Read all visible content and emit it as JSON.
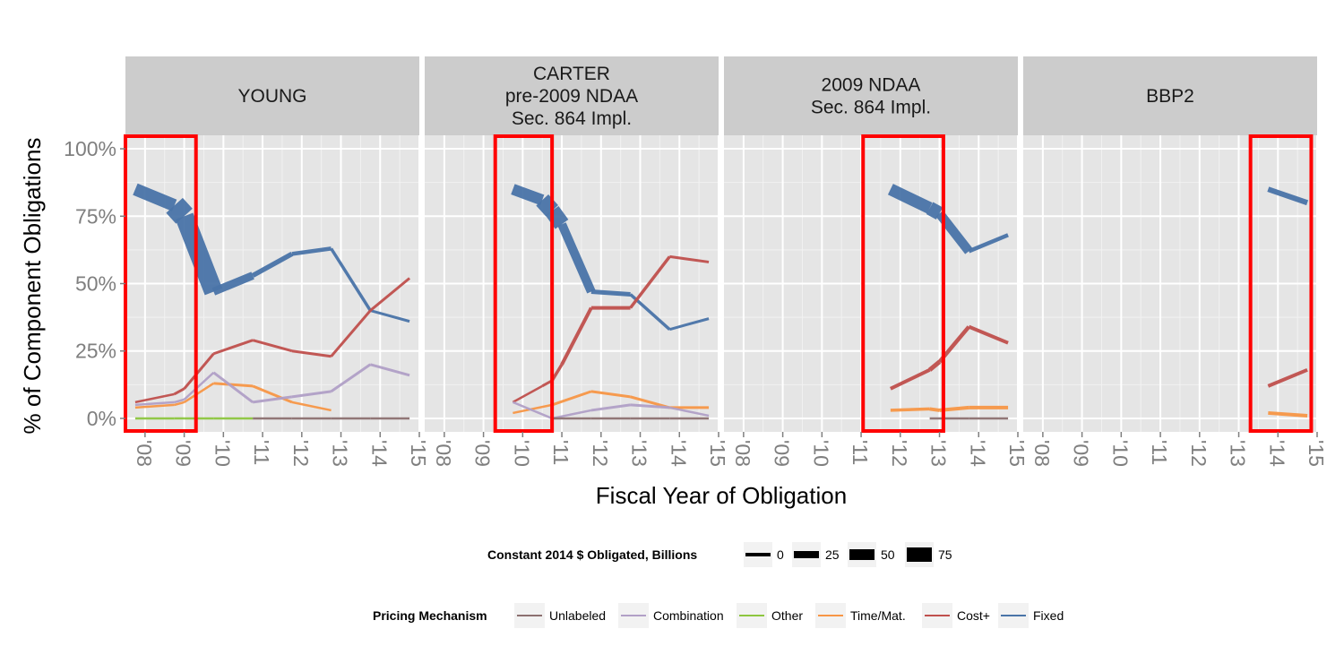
{
  "chart_data": {
    "type": "line",
    "xlabel": "Fiscal Year of Obligation",
    "ylabel": "% of Component Obligations",
    "x_ticks": [
      "'08",
      "'09",
      "'10",
      "'11",
      "'12",
      "'13",
      "'14",
      "'15"
    ],
    "y_ticks": [
      "0%",
      "25%",
      "50%",
      "75%",
      "100%"
    ],
    "xlim": [
      2007.5,
      2015
    ],
    "ylim": [
      -0.05,
      1.05
    ],
    "grid": true,
    "panels": [
      {
        "title_lines": [
          "YOUNG"
        ],
        "highlight": [
          2007.5,
          2009.3
        ],
        "series": [
          {
            "name": "Fixed",
            "color": "#4a74a8",
            "points": [
              [
                2007.75,
                0.85,
                8
              ],
              [
                2008.75,
                0.79,
                20
              ],
              [
                2009.0,
                0.75,
                30
              ],
              [
                2009.75,
                0.47,
                12
              ],
              [
                2010.75,
                0.53,
                6
              ],
              [
                2011.75,
                0.61,
                5
              ],
              [
                2012.75,
                0.63,
                4
              ],
              [
                2013.75,
                0.4,
                3
              ],
              [
                2014.75,
                0.36,
                3
              ]
            ]
          },
          {
            "name": "Cost+",
            "color": "#c0504d",
            "points": [
              [
                2007.75,
                0.06,
                2
              ],
              [
                2008.75,
                0.09,
                3
              ],
              [
                2009.0,
                0.11,
                3
              ],
              [
                2009.75,
                0.24,
                3
              ],
              [
                2010.75,
                0.29,
                3
              ],
              [
                2011.75,
                0.25,
                3
              ],
              [
                2012.75,
                0.23,
                3
              ],
              [
                2013.75,
                0.4,
                3
              ],
              [
                2014.75,
                0.52,
                3
              ]
            ]
          },
          {
            "name": "Time/Mat.",
            "color": "#f79646",
            "points": [
              [
                2007.75,
                0.04,
                2
              ],
              [
                2008.75,
                0.05,
                2
              ],
              [
                2009.0,
                0.06,
                2
              ],
              [
                2009.75,
                0.13,
                3
              ],
              [
                2010.75,
                0.12,
                3
              ],
              [
                2011.75,
                0.06,
                3
              ],
              [
                2012.75,
                0.03,
                2
              ]
            ]
          },
          {
            "name": "Combination",
            "color": "#b1a0c7",
            "points": [
              [
                2007.75,
                0.05,
                2
              ],
              [
                2008.75,
                0.06,
                2
              ],
              [
                2009.0,
                0.07,
                2
              ],
              [
                2009.75,
                0.17,
                3
              ],
              [
                2010.75,
                0.06,
                3
              ],
              [
                2011.75,
                0.08,
                3
              ],
              [
                2012.75,
                0.1,
                3
              ],
              [
                2013.75,
                0.2,
                3
              ],
              [
                2014.75,
                0.16,
                3
              ]
            ]
          },
          {
            "name": "Other",
            "color": "#8dc63f",
            "points": [
              [
                2007.75,
                0.0,
                2
              ],
              [
                2008.75,
                0.0,
                2
              ],
              [
                2009.0,
                0.0,
                2
              ],
              [
                2009.75,
                0.0,
                2
              ],
              [
                2010.75,
                0.0,
                2
              ]
            ]
          },
          {
            "name": "Unlabeled",
            "color": "#8c7070",
            "points": [
              [
                2010.75,
                0.0,
                2
              ],
              [
                2011.75,
                0.0,
                2
              ],
              [
                2012.75,
                0.0,
                2
              ],
              [
                2013.75,
                0.0,
                2
              ],
              [
                2014.75,
                0.0,
                2
              ]
            ]
          }
        ]
      },
      {
        "title_lines": [
          "CARTER",
          "pre-2009 NDAA",
          "Sec. 864 Impl."
        ],
        "highlight": [
          2009.3,
          2010.75
        ],
        "series": [
          {
            "name": "Fixed",
            "color": "#4a74a8",
            "points": [
              [
                2009.75,
                0.85,
                10
              ],
              [
                2010.5,
                0.81,
                15
              ],
              [
                2010.75,
                0.77,
                22
              ],
              [
                2011.0,
                0.72,
                14
              ],
              [
                2011.75,
                0.47,
                6
              ],
              [
                2012.75,
                0.46,
                4
              ],
              [
                2013.75,
                0.33,
                3
              ],
              [
                2014.75,
                0.37,
                3
              ]
            ]
          },
          {
            "name": "Cost+",
            "color": "#c0504d",
            "points": [
              [
                2009.75,
                0.06,
                2
              ],
              [
                2010.5,
                0.12,
                3
              ],
              [
                2010.75,
                0.14,
                3
              ],
              [
                2011.0,
                0.2,
                4
              ],
              [
                2011.75,
                0.41,
                4
              ],
              [
                2012.75,
                0.41,
                4
              ],
              [
                2013.75,
                0.6,
                3
              ],
              [
                2014.75,
                0.58,
                3
              ]
            ]
          },
          {
            "name": "Time/Mat.",
            "color": "#f79646",
            "points": [
              [
                2009.75,
                0.02,
                2
              ],
              [
                2010.75,
                0.05,
                3
              ],
              [
                2011.75,
                0.1,
                3
              ],
              [
                2012.75,
                0.08,
                3
              ],
              [
                2013.75,
                0.04,
                3
              ],
              [
                2014.75,
                0.04,
                3
              ]
            ]
          },
          {
            "name": "Combination",
            "color": "#b1a0c7",
            "points": [
              [
                2009.75,
                0.06,
                2
              ],
              [
                2010.75,
                0.0,
                2
              ],
              [
                2011.75,
                0.03,
                3
              ],
              [
                2012.75,
                0.05,
                3
              ],
              [
                2013.75,
                0.04,
                3
              ],
              [
                2014.75,
                0.01,
                2
              ]
            ]
          },
          {
            "name": "Unlabeled",
            "color": "#8c7070",
            "points": [
              [
                2010.75,
                0.0,
                2
              ],
              [
                2011.75,
                0.0,
                2
              ],
              [
                2012.75,
                0.0,
                2
              ],
              [
                2013.75,
                0.0,
                2
              ],
              [
                2014.75,
                0.0,
                2
              ]
            ]
          }
        ]
      },
      {
        "title_lines": [
          "2009 NDAA",
          "Sec. 864 Impl."
        ],
        "highlight": [
          2011.05,
          2013.1
        ],
        "series": [
          {
            "name": "Fixed",
            "color": "#4a74a8",
            "points": [
              [
                2011.75,
                0.85,
                12
              ],
              [
                2012.75,
                0.78,
                15
              ],
              [
                2013.0,
                0.76,
                16
              ],
              [
                2013.75,
                0.62,
                5
              ],
              [
                2014.75,
                0.68,
                4
              ]
            ]
          },
          {
            "name": "Cost+",
            "color": "#c0504d",
            "points": [
              [
                2011.75,
                0.11,
                3
              ],
              [
                2012.75,
                0.18,
                5
              ],
              [
                2013.0,
                0.21,
                5
              ],
              [
                2013.75,
                0.34,
                4
              ],
              [
                2014.75,
                0.28,
                4
              ]
            ]
          },
          {
            "name": "Time/Mat.",
            "color": "#f79646",
            "points": [
              [
                2011.75,
                0.03,
                3
              ],
              [
                2012.75,
                0.035,
                4
              ],
              [
                2013.0,
                0.03,
                4
              ],
              [
                2013.75,
                0.04,
                4
              ],
              [
                2014.75,
                0.04,
                4
              ]
            ]
          },
          {
            "name": "Unlabeled",
            "color": "#8c7070",
            "points": [
              [
                2012.75,
                0.0,
                2
              ],
              [
                2013.75,
                0.0,
                2
              ],
              [
                2014.75,
                0.0,
                2
              ]
            ]
          }
        ]
      },
      {
        "title_lines": [
          "BBP2"
        ],
        "highlight": [
          2013.3,
          2014.85
        ],
        "series": [
          {
            "name": "Fixed",
            "color": "#4a74a8",
            "points": [
              [
                2013.75,
                0.85,
                6
              ],
              [
                2014.75,
                0.8,
                6
              ]
            ]
          },
          {
            "name": "Cost+",
            "color": "#c0504d",
            "points": [
              [
                2013.75,
                0.12,
                4
              ],
              [
                2014.75,
                0.18,
                4
              ]
            ]
          },
          {
            "name": "Time/Mat.",
            "color": "#f79646",
            "points": [
              [
                2013.75,
                0.02,
                4
              ],
              [
                2014.75,
                0.01,
                4
              ]
            ]
          }
        ]
      }
    ],
    "size_legend": {
      "title": "Constant 2014 $ Obligated, Billions",
      "items": [
        {
          "label": "0",
          "width": 2
        },
        {
          "label": "25",
          "width": 4
        },
        {
          "label": "50",
          "width": 6
        },
        {
          "label": "75",
          "width": 8
        }
      ]
    },
    "color_legend": {
      "title": "Pricing Mechanism",
      "items": [
        {
          "label": "Unlabeled",
          "color": "#8c7070"
        },
        {
          "label": "Combination",
          "color": "#b1a0c7"
        },
        {
          "label": "Other",
          "color": "#8dc63f"
        },
        {
          "label": "Time/Mat.",
          "color": "#f79646"
        },
        {
          "label": "Cost+",
          "color": "#c0504d"
        },
        {
          "label": "Fixed",
          "color": "#4a74a8"
        }
      ]
    }
  }
}
